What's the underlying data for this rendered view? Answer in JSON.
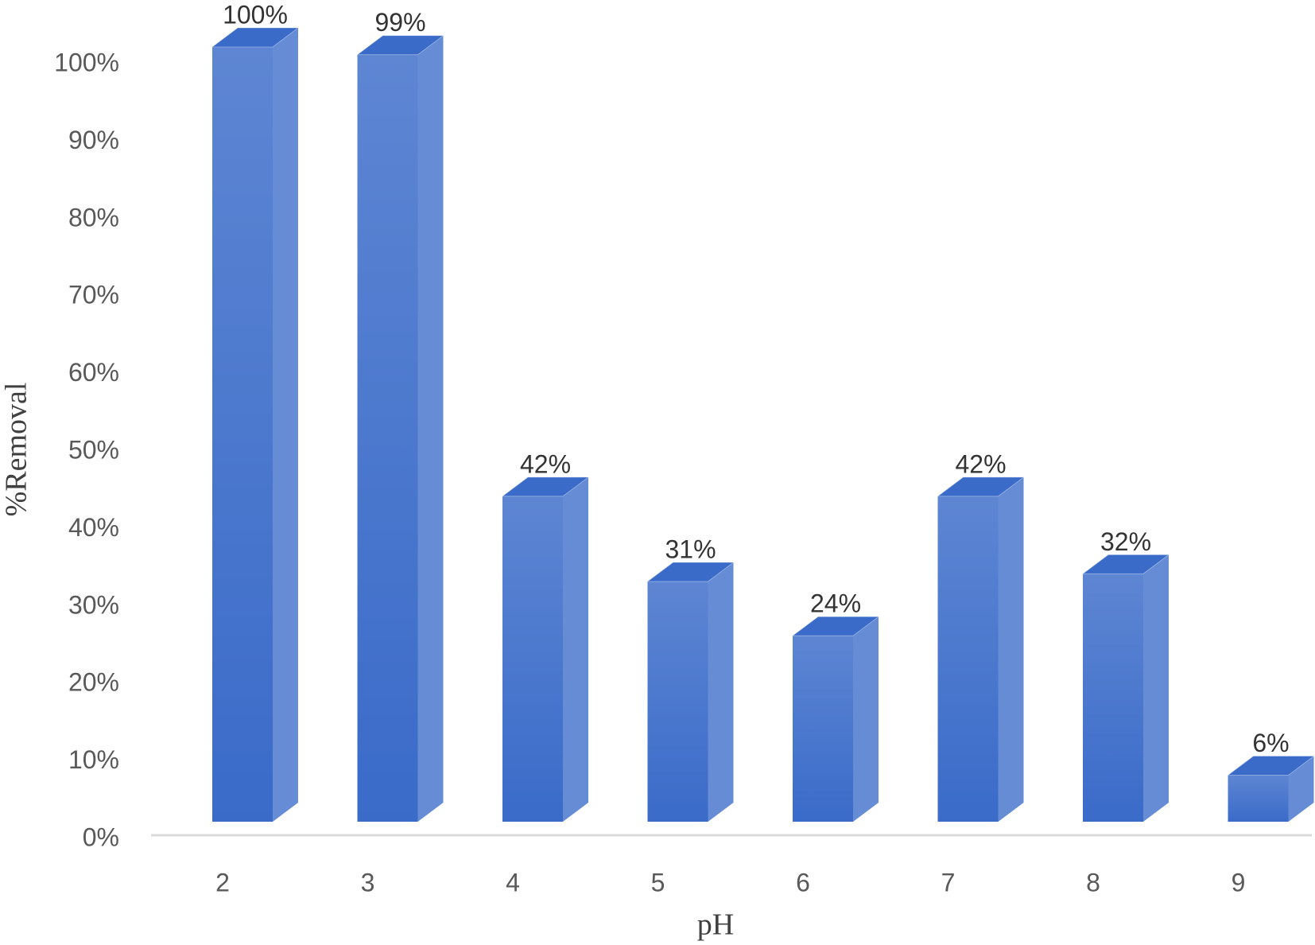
{
  "chart_data": {
    "type": "bar3d",
    "x_label": "pH",
    "y_label": "%Removal",
    "categories": [
      "2",
      "3",
      "4",
      "5",
      "6",
      "7",
      "8",
      "9"
    ],
    "values": [
      100,
      99,
      42,
      31,
      24,
      42,
      32,
      6
    ],
    "value_labels": [
      "100%",
      "99%",
      "42%",
      "31%",
      "24%",
      "42%",
      "32%",
      "6%"
    ],
    "color": "#3a6bc9",
    "ylim": [
      0,
      100
    ],
    "yticks": [
      {
        "value": 0,
        "label": "0%"
      },
      {
        "value": 10,
        "label": "10%"
      },
      {
        "value": 20,
        "label": "20%"
      },
      {
        "value": 30,
        "label": "30%"
      },
      {
        "value": 40,
        "label": "40%"
      },
      {
        "value": 50,
        "label": "50%"
      },
      {
        "value": 60,
        "label": "60%"
      },
      {
        "value": 70,
        "label": "70%"
      },
      {
        "value": 80,
        "label": "80%"
      },
      {
        "value": 90,
        "label": "90%"
      },
      {
        "value": 100,
        "label": "100%"
      }
    ],
    "grid": false
  }
}
